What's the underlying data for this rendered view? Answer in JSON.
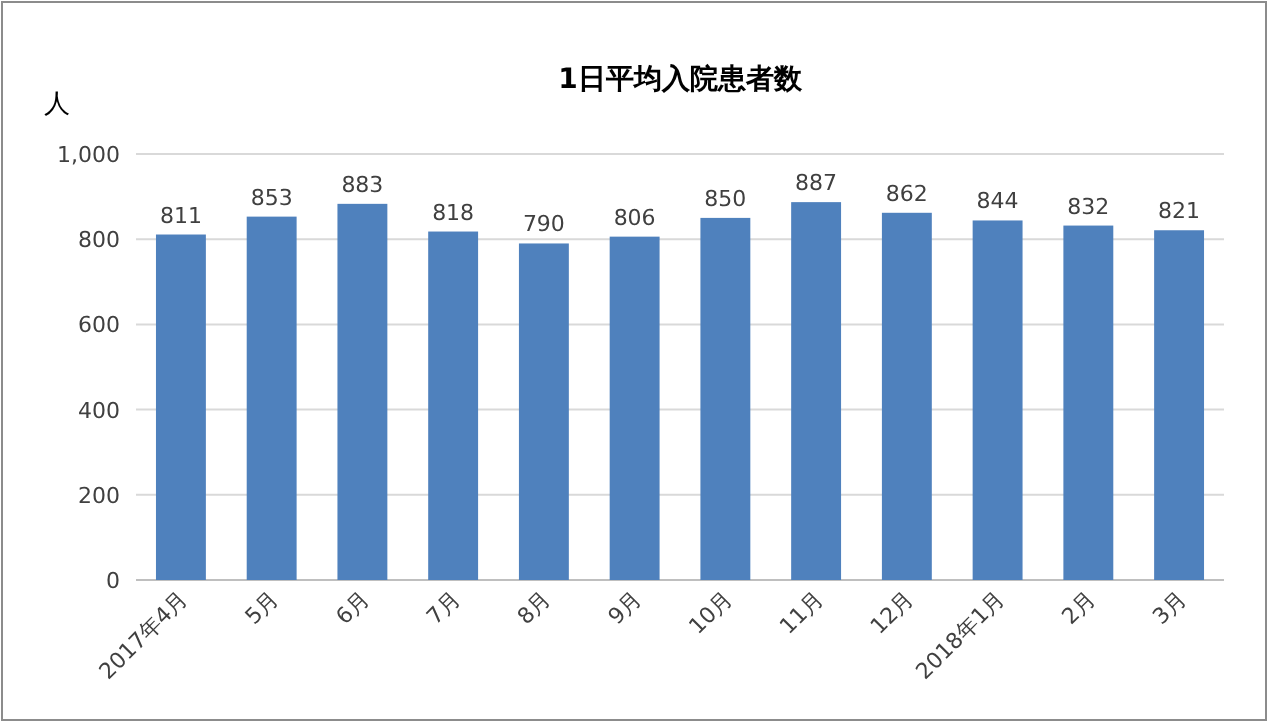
{
  "chart_data": {
    "type": "bar",
    "title": "1日平均入院患者数",
    "ylabel": "人",
    "categories": [
      "2017年4月",
      "5月",
      "6月",
      "7月",
      "8月",
      "9月",
      "10月",
      "11月",
      "12月",
      "2018年1月",
      "2月",
      "3月"
    ],
    "values": [
      811,
      853,
      883,
      818,
      790,
      806,
      850,
      887,
      862,
      844,
      832,
      821
    ],
    "color": "#4f81bd",
    "ylim": [
      0,
      1000
    ],
    "yticks": [
      0,
      200,
      400,
      600,
      800,
      {
        "value": 1000,
        "label": "1,000"
      }
    ],
    "grid": "y",
    "data_labels": true
  }
}
